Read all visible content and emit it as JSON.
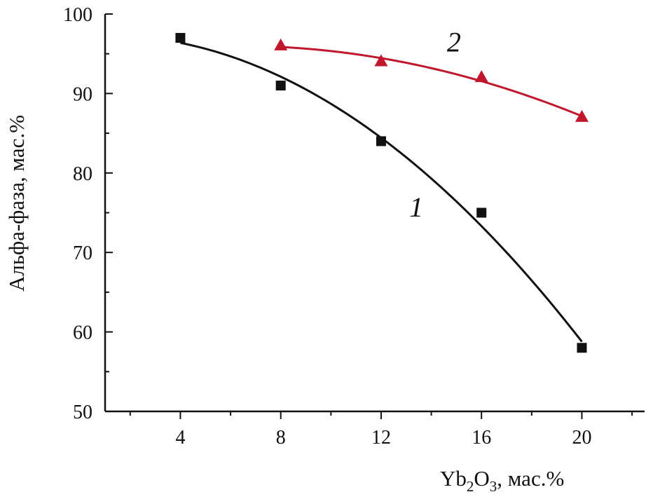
{
  "chart_data": {
    "type": "line",
    "xlabel": {
      "main": "Yb",
      "sub1": "2",
      "mid": "O",
      "sub2": "3",
      "tail": ", мас.%"
    },
    "ylabel": "Альфа-фаза, мас.%",
    "xlim": [
      1,
      22.5
    ],
    "ylim": [
      50,
      100
    ],
    "x_ticks": [
      4,
      8,
      12,
      16,
      20
    ],
    "x_tick_labels": [
      "4",
      "8",
      "12",
      "16",
      "20"
    ],
    "y_ticks": [
      50,
      60,
      70,
      80,
      90,
      100
    ],
    "y_tick_labels": [
      "50",
      "60",
      "70",
      "80",
      "90",
      "100"
    ],
    "grid": false,
    "series": [
      {
        "name": "1",
        "marker": "square",
        "color": "#111111",
        "x": [
          4,
          8,
          12,
          16,
          20
        ],
        "y": [
          97,
          91,
          84,
          75,
          58
        ]
      },
      {
        "name": "2",
        "marker": "triangle",
        "color": "#c0172d",
        "x": [
          8,
          12,
          16,
          20
        ],
        "y": [
          96,
          94,
          92,
          87
        ]
      }
    ]
  }
}
